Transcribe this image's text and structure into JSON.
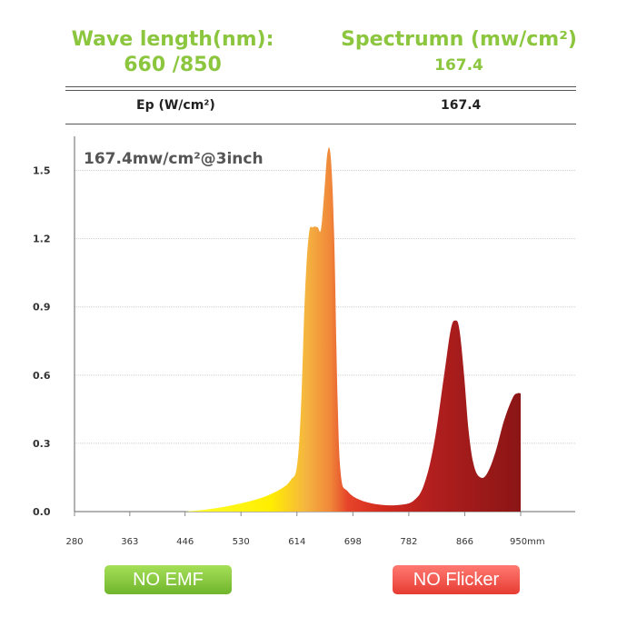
{
  "header": {
    "left_title": "Wave length(nm):",
    "left_value": "660 /850",
    "right_title": "Spectrumn (mw/cm²)",
    "right_value": "167.4"
  },
  "table": {
    "label": "Ep (W/cm²)",
    "value": "167.4"
  },
  "badges": {
    "emf": "NO EMF",
    "flicker": "NO Flicker"
  },
  "colors": {
    "header_green": "#8cc63f",
    "badge_green": "#7cc23a",
    "badge_red": "#ec4a40",
    "spectrum_yellow": "#ffff00",
    "spectrum_orange": "#f08a3a",
    "spectrum_red": "#e0301e",
    "spectrum_darkred": "#8b1a1a"
  },
  "chart_data": {
    "type": "area",
    "annotation": "167.4mw/cm²@3inch",
    "x_ticks": [
      "280",
      "363",
      "446",
      "530",
      "614",
      "698",
      "782",
      "866",
      "950mm"
    ],
    "y_ticks": [
      "0.0",
      "0.3",
      "0.6",
      "0.9",
      "1.2",
      "1.5"
    ],
    "xlim": [
      280,
      950
    ],
    "ylim": [
      0,
      1.65
    ],
    "grid": true,
    "x": [
      446,
      480,
      520,
      560,
      590,
      605,
      614,
      620,
      626,
      632,
      638,
      645,
      650,
      655,
      660,
      665,
      670,
      675,
      680,
      690,
      710,
      740,
      770,
      790,
      805,
      820,
      835,
      845,
      852,
      858,
      865,
      872,
      880,
      890,
      900,
      912,
      925,
      938,
      945,
      950
    ],
    "y": [
      0.0,
      0.01,
      0.03,
      0.06,
      0.1,
      0.14,
      0.2,
      0.45,
      0.95,
      1.22,
      1.25,
      1.25,
      1.24,
      1.4,
      1.58,
      1.55,
      1.2,
      0.5,
      0.16,
      0.09,
      0.05,
      0.03,
      0.03,
      0.05,
      0.12,
      0.3,
      0.6,
      0.8,
      0.84,
      0.8,
      0.6,
      0.35,
      0.2,
      0.15,
      0.17,
      0.26,
      0.4,
      0.5,
      0.52,
      0.52
    ]
  }
}
